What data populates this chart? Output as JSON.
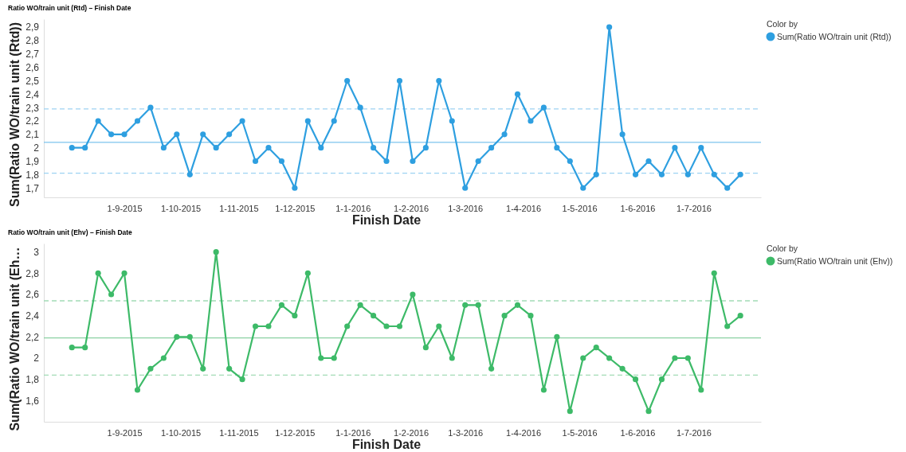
{
  "chart_data": [
    {
      "type": "line",
      "title": "Ratio WO/train unit (Rtd) – Finish Date",
      "xlabel": "Finish Date",
      "ylabel": "Sum(Ratio WO/train unit (Rtd))",
      "legend_title": "Color by",
      "legend": "top right",
      "marker": "circle",
      "line_style": "solid",
      "grid": false,
      "x": [
        "2015-08-04",
        "2015-08-11",
        "2015-08-18",
        "2015-08-25",
        "2015-09-01",
        "2015-09-08",
        "2015-09-15",
        "2015-09-22",
        "2015-09-29",
        "2015-10-06",
        "2015-10-13",
        "2015-10-20",
        "2015-10-27",
        "2015-11-03",
        "2015-11-10",
        "2015-11-17",
        "2015-11-24",
        "2015-12-01",
        "2015-12-08",
        "2015-12-15",
        "2015-12-22",
        "2015-12-29",
        "2016-01-05",
        "2016-01-12",
        "2016-01-19",
        "2016-01-26",
        "2016-02-02",
        "2016-02-09",
        "2016-02-16",
        "2016-02-23",
        "2016-03-01",
        "2016-03-08",
        "2016-03-15",
        "2016-03-22",
        "2016-03-29",
        "2016-04-05",
        "2016-04-12",
        "2016-04-19",
        "2016-04-26",
        "2016-05-03",
        "2016-05-10",
        "2016-05-17",
        "2016-05-24",
        "2016-05-31",
        "2016-06-07",
        "2016-06-14",
        "2016-06-21",
        "2016-06-28",
        "2016-07-05",
        "2016-07-12",
        "2016-07-19",
        "2016-07-26"
      ],
      "series": [
        {
          "name": "Sum(Ratio WO/train unit (Rtd))",
          "color": "#2e9fe0",
          "values": [
            2.0,
            2.0,
            2.2,
            2.1,
            2.1,
            2.2,
            2.3,
            2.0,
            2.1,
            1.8,
            2.1,
            2.0,
            2.1,
            2.2,
            1.9,
            2.0,
            1.9,
            1.7,
            2.2,
            2.0,
            2.2,
            2.5,
            2.3,
            2.0,
            1.9,
            2.5,
            1.9,
            2.0,
            2.5,
            2.2,
            1.7,
            1.9,
            2.0,
            2.1,
            2.4,
            2.2,
            2.3,
            2.0,
            1.9,
            1.7,
            1.8,
            2.9,
            2.1,
            1.8,
            1.9,
            1.8,
            2.0,
            1.8,
            2.0,
            1.8,
            1.7,
            1.8
          ]
        }
      ],
      "xlim": [
        "2015-07-20",
        "2016-08-06"
      ],
      "xticks": [
        {
          "value": "2015-09-01",
          "label": "1-9-2015"
        },
        {
          "value": "2015-10-01",
          "label": "1-10-2015"
        },
        {
          "value": "2015-11-01",
          "label": "1-11-2015"
        },
        {
          "value": "2015-12-01",
          "label": "1-12-2015"
        },
        {
          "value": "2016-01-01",
          "label": "1-1-2016"
        },
        {
          "value": "2016-02-01",
          "label": "1-2-2016"
        },
        {
          "value": "2016-03-01",
          "label": "1-3-2016"
        },
        {
          "value": "2016-04-01",
          "label": "1-4-2016"
        },
        {
          "value": "2016-05-01",
          "label": "1-5-2016"
        },
        {
          "value": "2016-06-01",
          "label": "1-6-2016"
        },
        {
          "value": "2016-07-01",
          "label": "1-7-2016"
        }
      ],
      "ylim": [
        1.63,
        2.96
      ],
      "yticks": [
        {
          "value": 1.7,
          "label": "1,7"
        },
        {
          "value": 1.8,
          "label": "1,8"
        },
        {
          "value": 1.9,
          "label": "1,9"
        },
        {
          "value": 2,
          "label": "2"
        },
        {
          "value": 2.1,
          "label": "2,1"
        },
        {
          "value": 2.2,
          "label": "2,2"
        },
        {
          "value": 2.3,
          "label": "2,3"
        },
        {
          "value": 2.4,
          "label": "2,4"
        },
        {
          "value": 2.5,
          "label": "2,5"
        },
        {
          "value": 2.6,
          "label": "2,6"
        },
        {
          "value": 2.7,
          "label": "2,7"
        },
        {
          "value": 2.8,
          "label": "2,8"
        },
        {
          "value": 2.9,
          "label": "2,9"
        }
      ],
      "ref_lines": [
        {
          "axis": "y",
          "value": 2.29,
          "label": null,
          "color": "#9dd2f2",
          "line_style": "dashed"
        },
        {
          "axis": "y",
          "value": 2.04,
          "label": null,
          "color": "#7cc3ed",
          "line_style": "solid"
        },
        {
          "axis": "y",
          "value": 1.81,
          "label": null,
          "color": "#9dd2f2",
          "line_style": "dashed"
        }
      ]
    },
    {
      "type": "line",
      "title": "Ratio WO/train unit (Ehv) – Finish Date",
      "xlabel": "Finish Date",
      "ylabel": "Sum(Ratio WO/train unit (Eh…",
      "legend_title": "Color by",
      "legend": "top right",
      "marker": "circle",
      "line_style": "solid",
      "grid": false,
      "x": [
        "2015-08-04",
        "2015-08-11",
        "2015-08-18",
        "2015-08-25",
        "2015-09-01",
        "2015-09-08",
        "2015-09-15",
        "2015-09-22",
        "2015-09-29",
        "2015-10-06",
        "2015-10-13",
        "2015-10-20",
        "2015-10-27",
        "2015-11-03",
        "2015-11-10",
        "2015-11-17",
        "2015-11-24",
        "2015-12-01",
        "2015-12-08",
        "2015-12-15",
        "2015-12-22",
        "2015-12-29",
        "2016-01-05",
        "2016-01-12",
        "2016-01-19",
        "2016-01-26",
        "2016-02-02",
        "2016-02-09",
        "2016-02-16",
        "2016-02-23",
        "2016-03-01",
        "2016-03-08",
        "2016-03-15",
        "2016-03-22",
        "2016-03-29",
        "2016-04-05",
        "2016-04-12",
        "2016-04-19",
        "2016-04-26",
        "2016-05-03",
        "2016-05-10",
        "2016-05-17",
        "2016-05-24",
        "2016-05-31",
        "2016-06-07",
        "2016-06-14",
        "2016-06-21",
        "2016-06-28",
        "2016-07-05",
        "2016-07-12",
        "2016-07-19",
        "2016-07-26"
      ],
      "series": [
        {
          "name": "Sum(Ratio WO/train unit (Ehv))",
          "color": "#3dba68",
          "values": [
            2.1,
            2.1,
            2.8,
            2.6,
            2.8,
            1.7,
            1.9,
            2.0,
            2.2,
            2.2,
            1.9,
            3.0,
            1.9,
            1.8,
            2.3,
            2.3,
            2.5,
            2.4,
            2.8,
            2.0,
            2.0,
            2.3,
            2.5,
            2.4,
            2.3,
            2.3,
            2.6,
            2.1,
            2.3,
            2.0,
            2.5,
            2.5,
            1.9,
            2.4,
            2.5,
            2.4,
            1.7,
            2.2,
            1.5,
            2.0,
            2.1,
            2.0,
            1.9,
            1.8,
            1.5,
            1.8,
            2.0,
            2.0,
            1.7,
            2.8,
            2.3,
            2.4
          ]
        }
      ],
      "xlim": [
        "2015-07-20",
        "2016-08-06"
      ],
      "xticks": [
        {
          "value": "2015-09-01",
          "label": "1-9-2015"
        },
        {
          "value": "2015-10-01",
          "label": "1-10-2015"
        },
        {
          "value": "2015-11-01",
          "label": "1-11-2015"
        },
        {
          "value": "2015-12-01",
          "label": "1-12-2015"
        },
        {
          "value": "2016-01-01",
          "label": "1-1-2016"
        },
        {
          "value": "2016-02-01",
          "label": "1-2-2016"
        },
        {
          "value": "2016-03-01",
          "label": "1-3-2016"
        },
        {
          "value": "2016-04-01",
          "label": "1-4-2016"
        },
        {
          "value": "2016-05-01",
          "label": "1-5-2016"
        },
        {
          "value": "2016-06-01",
          "label": "1-6-2016"
        },
        {
          "value": "2016-07-01",
          "label": "1-7-2016"
        }
      ],
      "ylim": [
        1.4,
        3.08
      ],
      "yticks": [
        {
          "value": 1.6,
          "label": "1,6"
        },
        {
          "value": 1.8,
          "label": "1,8"
        },
        {
          "value": 2,
          "label": "2"
        },
        {
          "value": 2.2,
          "label": "2,2"
        },
        {
          "value": 2.4,
          "label": "2,4"
        },
        {
          "value": 2.6,
          "label": "2,6"
        },
        {
          "value": 2.8,
          "label": "2,8"
        },
        {
          "value": 3,
          "label": "3"
        }
      ],
      "ref_lines": [
        {
          "axis": "y",
          "value": 2.54,
          "label": null,
          "color": "#a3dbb6",
          "line_style": "dashed"
        },
        {
          "axis": "y",
          "value": 2.19,
          "label": null,
          "color": "#8bd1a3",
          "line_style": "solid"
        },
        {
          "axis": "y",
          "value": 1.84,
          "label": null,
          "color": "#a3dbb6",
          "line_style": "dashed"
        }
      ]
    }
  ]
}
